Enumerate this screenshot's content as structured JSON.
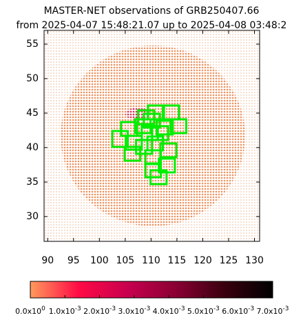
{
  "chart_data": {
    "type": "field-map",
    "title": "MASTER-NET observations of GRB250407.66",
    "subtitle": "from 2025-04-07 15:48:21.07 up to 2025-04-08 03:48:2",
    "xlim": [
      89.3,
      131
    ],
    "ylim": [
      26.4,
      57
    ],
    "xticks": [
      90,
      95,
      100,
      105,
      110,
      115,
      120,
      125,
      130
    ],
    "yticks": [
      30,
      35,
      40,
      45,
      50,
      55
    ],
    "field_color": "#00ee00",
    "fields": [
      {
        "x": [
          107.5,
          110.6
        ],
        "y": [
          43.4,
          45.4
        ]
      },
      {
        "x": [
          109.4,
          112.5
        ],
        "y": [
          44.1,
          46.1
        ]
      },
      {
        "x": [
          112.3,
          115.4
        ],
        "y": [
          44.1,
          46.1
        ]
      },
      {
        "x": [
          113.8,
          116.8
        ],
        "y": [
          42.1,
          44.1
        ]
      },
      {
        "x": [
          104.2,
          107.3
        ],
        "y": [
          41.7,
          43.7
        ]
      },
      {
        "x": [
          102.5,
          105.5
        ],
        "y": [
          40.1,
          42.4
        ]
      },
      {
        "x": [
          105.1,
          108.2
        ],
        "y": [
          39.7,
          41.7
        ]
      },
      {
        "x": [
          104.9,
          107.9
        ],
        "y": [
          38.1,
          40.1
        ]
      },
      {
        "x": [
          107.1,
          110.2
        ],
        "y": [
          39.1,
          41.1
        ]
      },
      {
        "x": [
          108.2,
          111.3
        ],
        "y": [
          41.1,
          43.1
        ]
      },
      {
        "x": [
          110.2,
          113.3
        ],
        "y": [
          41.1,
          43.1
        ]
      },
      {
        "x": [
          111.1,
          114.2
        ],
        "y": [
          41.9,
          43.9
        ]
      },
      {
        "x": [
          109.3,
          112.3
        ],
        "y": [
          39.6,
          41.6
        ]
      },
      {
        "x": [
          111.8,
          114.9
        ],
        "y": [
          38.6,
          40.6
        ]
      },
      {
        "x": [
          108.9,
          111.9
        ],
        "y": [
          37.6,
          39.6
        ]
      },
      {
        "x": [
          111.5,
          114.6
        ],
        "y": [
          36.4,
          38.4
        ]
      },
      {
        "x": [
          108.9,
          111.9
        ],
        "y": [
          35.7,
          37.7
        ]
      },
      {
        "x": [
          109.9,
          113.0
        ],
        "y": [
          34.7,
          36.7
        ]
      },
      {
        "x": [
          106.9,
          109.9
        ],
        "y": [
          42.1,
          44.1
        ]
      },
      {
        "x": [
          108.6,
          111.7
        ],
        "y": [
          42.9,
          44.9
        ]
      }
    ],
    "colorbar": {
      "lim": [
        0,
        0.007
      ],
      "colors": [
        "#ff9a5c",
        "#ff0a45",
        "#c8004f",
        "#8a0033",
        "#3a000f",
        "#000000"
      ],
      "ticks": [
        {
          "value": 0,
          "label": "0.0x10",
          "exponent": "0"
        },
        {
          "value": 0.001,
          "label": "1.0x10",
          "exponent": "-3"
        },
        {
          "value": 0.002,
          "label": "2.0x10",
          "exponent": "-3"
        },
        {
          "value": 0.003,
          "label": "3.0x10",
          "exponent": "-3"
        },
        {
          "value": 0.004,
          "label": "4.0x10",
          "exponent": "-3"
        },
        {
          "value": 0.005,
          "label": "5.0x10",
          "exponent": "-3"
        },
        {
          "value": 0.006,
          "label": "6.0x10",
          "exponent": "-3"
        },
        {
          "value": 0.007,
          "label": "7.0x10",
          "exponent": "-3"
        }
      ]
    }
  }
}
